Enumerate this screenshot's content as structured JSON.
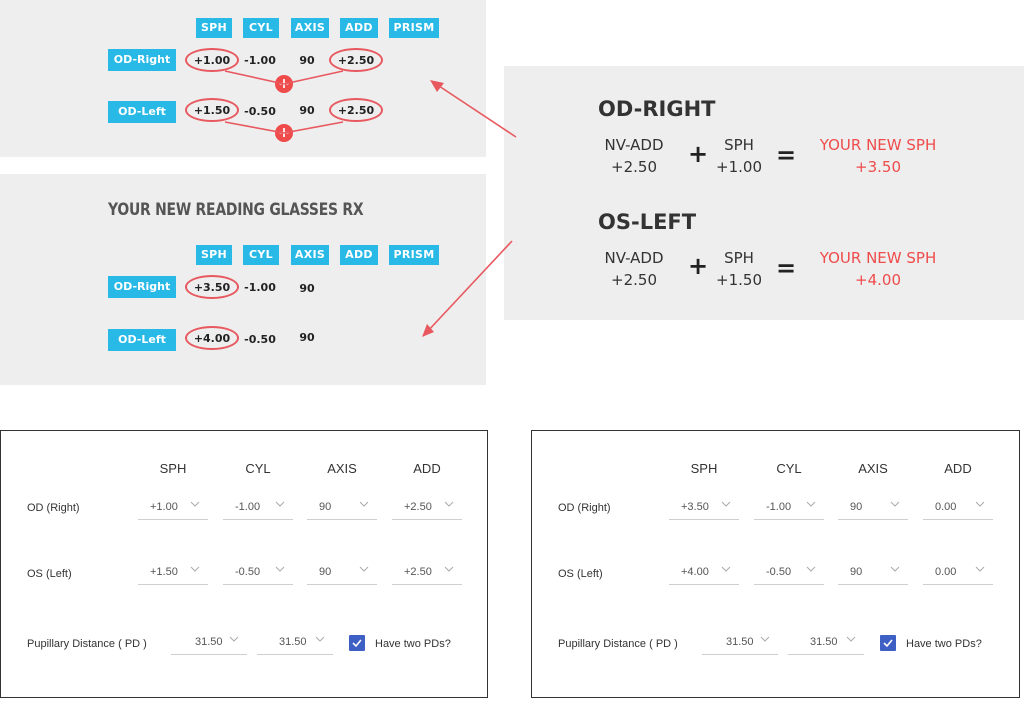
{
  "top_panel": {
    "headers": [
      "SPH",
      "CYL",
      "AXIS",
      "ADD",
      "PRISM"
    ],
    "rows": [
      {
        "label": "OD-Right",
        "sph": "+1.00",
        "cyl": "-1.00",
        "axis": "90",
        "add": "+2.50"
      },
      {
        "label": "OD-Left",
        "sph": "+1.50",
        "cyl": "-0.50",
        "axis": "90",
        "add": "+2.50"
      }
    ],
    "plus_symbol": "+"
  },
  "rx_panel": {
    "title": "YOUR NEW READING GLASSES RX",
    "headers": [
      "SPH",
      "CYL",
      "AXIS",
      "ADD",
      "PRISM"
    ],
    "rows": [
      {
        "label": "OD-Right",
        "sph": "+3.50",
        "cyl": "-1.00",
        "axis": "90"
      },
      {
        "label": "OD-Left",
        "sph": "+4.00",
        "cyl": "-0.50",
        "axis": "90"
      }
    ]
  },
  "equation_panel": {
    "blocks": [
      {
        "heading": "OD-RIGHT",
        "a_label": "NV-ADD",
        "a_value": "+2.50",
        "b_label": "SPH",
        "b_value": "+1.00",
        "result_label": "YOUR NEW SPH",
        "result_value": "+3.50"
      },
      {
        "heading": "OS-LEFT",
        "a_label": "NV-ADD",
        "a_value": "+2.50",
        "b_label": "SPH",
        "b_value": "+1.50",
        "result_label": "YOUR NEW SPH",
        "result_value": "+4.00"
      }
    ],
    "plus": "+",
    "equals": "="
  },
  "form_left": {
    "headers": [
      "SPH",
      "CYL",
      "AXIS",
      "ADD"
    ],
    "rows": [
      {
        "label": "OD (Right)",
        "values": [
          "+1.00",
          "-1.00",
          "90",
          "+2.50"
        ]
      },
      {
        "label": "OS (Left)",
        "values": [
          "+1.50",
          "-0.50",
          "90",
          "+2.50"
        ]
      }
    ],
    "pd_label": "Pupillary Distance ( PD )",
    "pd_values": [
      "31.50",
      "31.50"
    ],
    "two_pd_label": "Have two PDs?"
  },
  "form_right": {
    "headers": [
      "SPH",
      "CYL",
      "AXIS",
      "ADD"
    ],
    "rows": [
      {
        "label": "OD (Right)",
        "values": [
          "+3.50",
          "-1.00",
          "90",
          "0.00"
        ]
      },
      {
        "label": "OS (Left)",
        "values": [
          "+4.00",
          "-0.50",
          "90",
          "0.00"
        ]
      }
    ],
    "pd_label": "Pupillary Distance ( PD )",
    "pd_values": [
      "31.50",
      "31.50"
    ],
    "two_pd_label": "Have two PDs?"
  },
  "colors": {
    "accent_blue": "#29b9e6",
    "highlight_red": "#ef4b4b",
    "panel_gray": "#eeeeee",
    "checkbox_blue": "#3e5fc4"
  }
}
